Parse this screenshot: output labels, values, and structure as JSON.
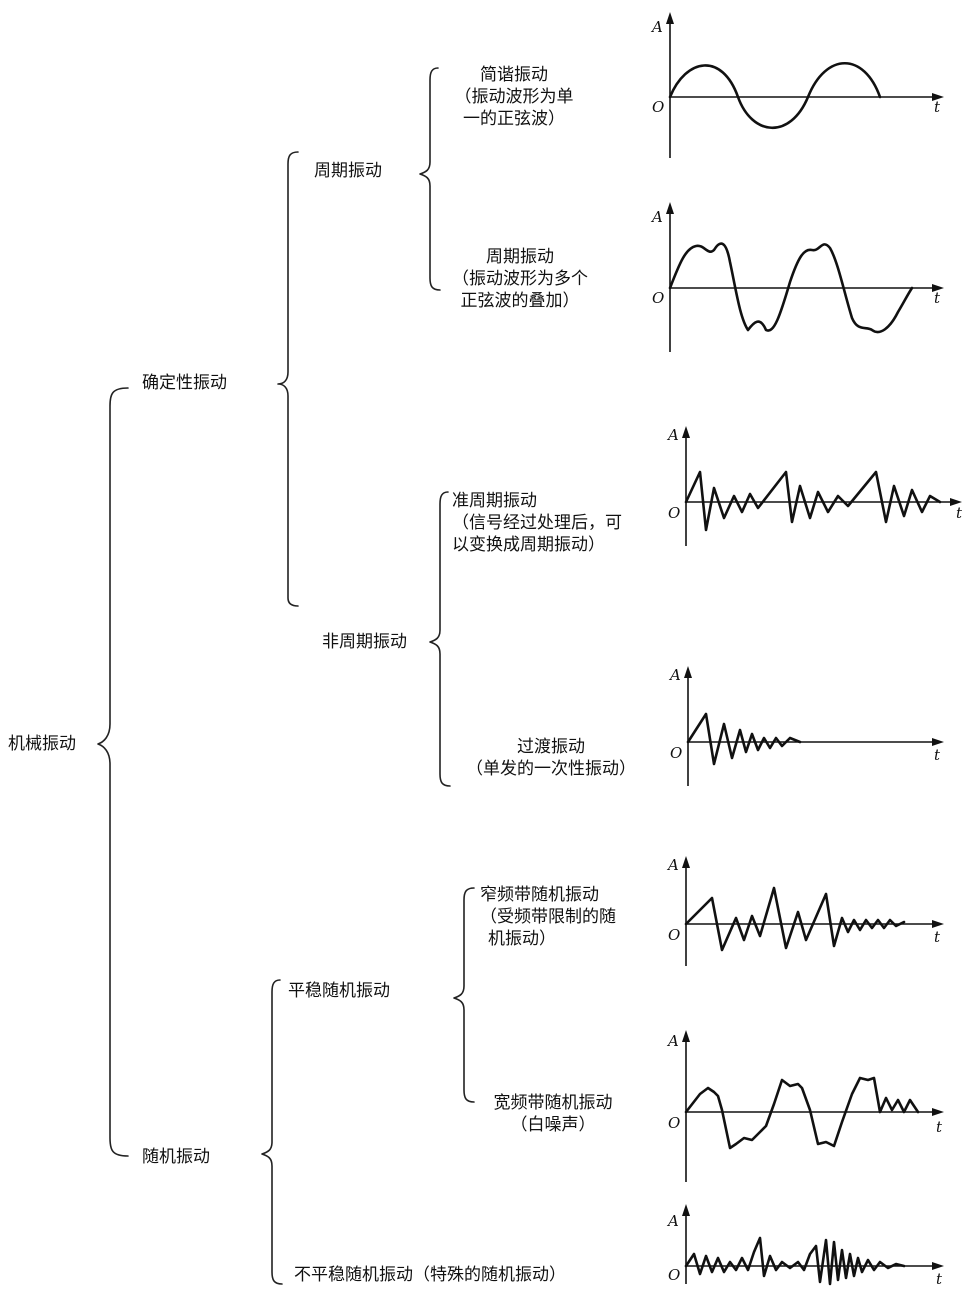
{
  "root": "机械振动",
  "deterministic": {
    "label": "确定性振动",
    "periodic": {
      "label": "周期振动",
      "simple_harmonic": [
        "简谐振动",
        "（振动波形为单",
        "一的正弦波）"
      ],
      "complex_periodic": [
        "周期振动",
        "（振动波形为多个",
        "正弦波的叠加）"
      ]
    },
    "aperiodic": {
      "label": "非周期振动",
      "quasi_periodic": [
        "准周期振动",
        "（信号经过处理后，可",
        "以变换成周期振动）"
      ],
      "transient": [
        "过渡振动",
        "（单发的一次性振动）"
      ]
    }
  },
  "random": {
    "label": "随机振动",
    "stationary": {
      "label": "平稳随机振动",
      "narrowband": [
        "窄频带随机振动",
        "（受频带限制的随",
        "机振动）"
      ],
      "broadband": [
        "宽频带随机振动",
        "（白噪声）"
      ]
    },
    "nonstationary": "不平稳随机振动（特殊的随机振动）"
  },
  "axes": {
    "y": "A",
    "x": "t",
    "origin": "O"
  }
}
